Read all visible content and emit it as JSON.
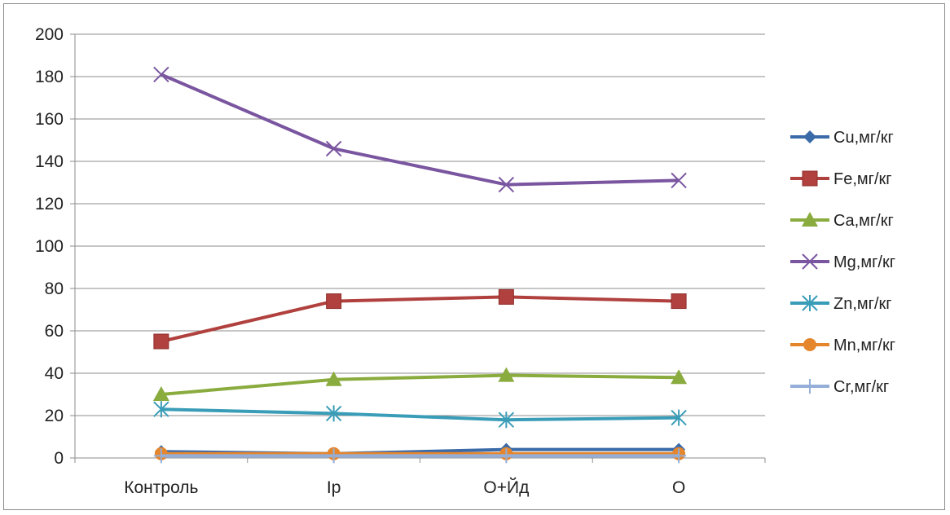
{
  "chart_data": {
    "type": "line",
    "title": "",
    "xlabel": "",
    "ylabel": "",
    "categories": [
      "Контроль",
      "Ip",
      "О+Йд",
      "О"
    ],
    "ylim": [
      0,
      200
    ],
    "yticks": [
      0,
      20,
      40,
      60,
      80,
      100,
      120,
      140,
      160,
      180,
      200
    ],
    "grid": true,
    "legend": "right",
    "series": [
      {
        "name": "Cu,мг/кг",
        "values": [
          3,
          2,
          4,
          4
        ],
        "color": "#3a6aa8",
        "marker": "diamond"
      },
      {
        "name": "Fe,мг/кг",
        "values": [
          55,
          74,
          76,
          74
        ],
        "color": "#b0413e",
        "marker": "square"
      },
      {
        "name": "Ca,мг/кг",
        "values": [
          30,
          37,
          39,
          38
        ],
        "color": "#8aab3e",
        "marker": "triangle"
      },
      {
        "name": "Mg,мг/кг",
        "values": [
          181,
          146,
          129,
          131
        ],
        "color": "#7a55a0",
        "marker": "x"
      },
      {
        "name": "Zn,мг/кг",
        "values": [
          23,
          21,
          18,
          19
        ],
        "color": "#3a9db8",
        "marker": "asterisk"
      },
      {
        "name": "Mn,мг/кг",
        "values": [
          2,
          2,
          2,
          2
        ],
        "color": "#e5862d",
        "marker": "circle"
      },
      {
        "name": "Cr,мг/кг",
        "values": [
          1,
          1,
          1,
          1
        ],
        "color": "#94aed8",
        "marker": "plus"
      }
    ]
  }
}
